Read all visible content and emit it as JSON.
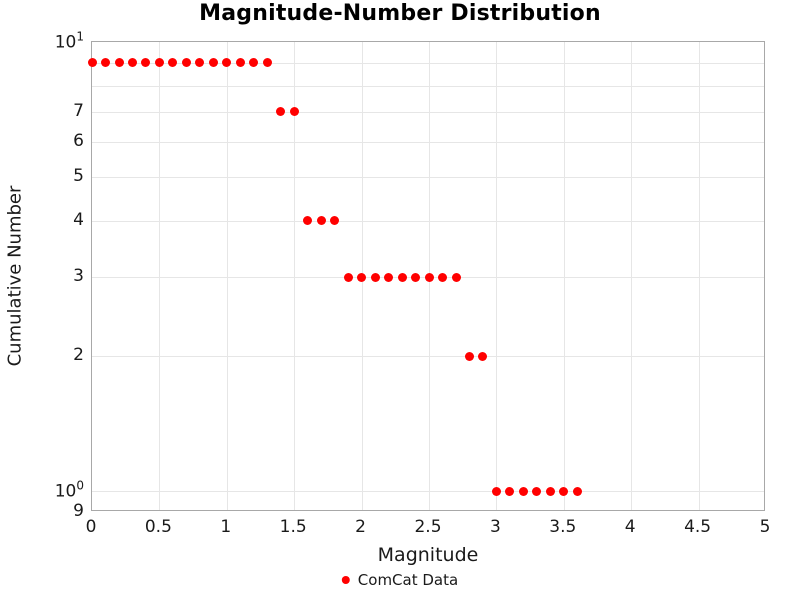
{
  "chart_data": {
    "type": "scatter",
    "title": "Magnitude-Number Distribution",
    "xlabel": "Magnitude",
    "ylabel": "Cumulative Number",
    "legend": {
      "label": "ComCat Data",
      "position": "bottom-center"
    },
    "colors": {
      "marker": "#FF0000",
      "grid": "#e6e6e6",
      "axis_border": "#a8a8a8",
      "text": "#1a1a1a"
    },
    "x_axis": {
      "scale": "linear",
      "min": 0,
      "max": 5,
      "tick_labels": [
        "0",
        "0.5",
        "1",
        "1.5",
        "2",
        "2.5",
        "3",
        "3.5",
        "4",
        "4.5",
        "5"
      ],
      "tick_values": [
        0,
        0.5,
        1,
        1.5,
        2,
        2.5,
        3,
        3.5,
        4,
        4.5,
        5
      ],
      "grid": true
    },
    "y_axis": {
      "scale": "log",
      "min": 0.9,
      "max": 10,
      "grid_values": [
        1,
        2,
        3,
        4,
        5,
        6,
        7,
        8,
        9
      ],
      "tick_labels": [
        {
          "value": 10,
          "base": "10",
          "exp": "1"
        },
        {
          "value": 7,
          "base": "7"
        },
        {
          "value": 6,
          "base": "6"
        },
        {
          "value": 5,
          "base": "5"
        },
        {
          "value": 4,
          "base": "4"
        },
        {
          "value": 3,
          "base": "3"
        },
        {
          "value": 2,
          "base": "2"
        },
        {
          "value": 1,
          "base": "10",
          "exp": "0"
        },
        {
          "value": 0.9,
          "base": "9"
        }
      ],
      "grid": true
    },
    "series": [
      {
        "name": "ComCat Data",
        "color": "#FF0000",
        "points": [
          [
            0.0,
            9
          ],
          [
            0.1,
            9
          ],
          [
            0.2,
            9
          ],
          [
            0.3,
            9
          ],
          [
            0.4,
            9
          ],
          [
            0.5,
            9
          ],
          [
            0.6,
            9
          ],
          [
            0.7,
            9
          ],
          [
            0.8,
            9
          ],
          [
            0.9,
            9
          ],
          [
            1.0,
            9
          ],
          [
            1.1,
            9
          ],
          [
            1.2,
            9
          ],
          [
            1.3,
            9
          ],
          [
            1.4,
            7
          ],
          [
            1.5,
            7
          ],
          [
            1.6,
            4
          ],
          [
            1.7,
            4
          ],
          [
            1.8,
            4
          ],
          [
            1.9,
            3
          ],
          [
            2.0,
            3
          ],
          [
            2.1,
            3
          ],
          [
            2.2,
            3
          ],
          [
            2.3,
            3
          ],
          [
            2.4,
            3
          ],
          [
            2.5,
            3
          ],
          [
            2.6,
            3
          ],
          [
            2.7,
            3
          ],
          [
            2.8,
            2
          ],
          [
            2.9,
            2
          ],
          [
            3.0,
            1
          ],
          [
            3.1,
            1
          ],
          [
            3.2,
            1
          ],
          [
            3.3,
            1
          ],
          [
            3.4,
            1
          ],
          [
            3.5,
            1
          ],
          [
            3.6,
            1
          ]
        ]
      }
    ]
  }
}
